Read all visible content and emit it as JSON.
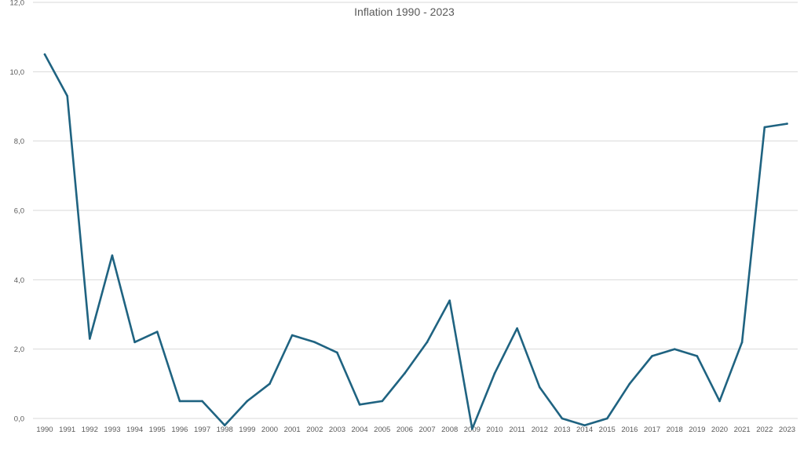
{
  "chart_data": {
    "type": "line",
    "title": "Inflation 1990 - 2023",
    "xlabel": "",
    "ylabel": "",
    "ylim": [
      0,
      12
    ],
    "yticks": [
      "0,0",
      "2,0",
      "4,0",
      "6,0",
      "8,0",
      "10,0",
      "12,0"
    ],
    "grid": true,
    "legend": "none",
    "categories": [
      "1990",
      "1991",
      "1992",
      "1993",
      "1994",
      "1995",
      "1996",
      "1997",
      "1998",
      "1999",
      "2000",
      "2001",
      "2002",
      "2003",
      "2004",
      "2005",
      "2006",
      "2007",
      "2008",
      "2009",
      "2010",
      "2011",
      "2012",
      "2013",
      "2014",
      "2015",
      "2016",
      "2017",
      "2018",
      "2019",
      "2020",
      "2021",
      "2022",
      "2023"
    ],
    "series": [
      {
        "color": "#1f6381",
        "values": [
          10.5,
          9.3,
          2.3,
          4.7,
          2.2,
          2.5,
          0.5,
          0.5,
          -0.2,
          0.5,
          1.0,
          2.4,
          2.2,
          1.9,
          0.4,
          0.5,
          1.3,
          2.2,
          3.4,
          -0.3,
          1.3,
          2.6,
          0.9,
          0.0,
          -0.2,
          0.0,
          1.0,
          1.8,
          2.0,
          1.8,
          0.5,
          2.2,
          8.4,
          8.5
        ]
      }
    ]
  }
}
